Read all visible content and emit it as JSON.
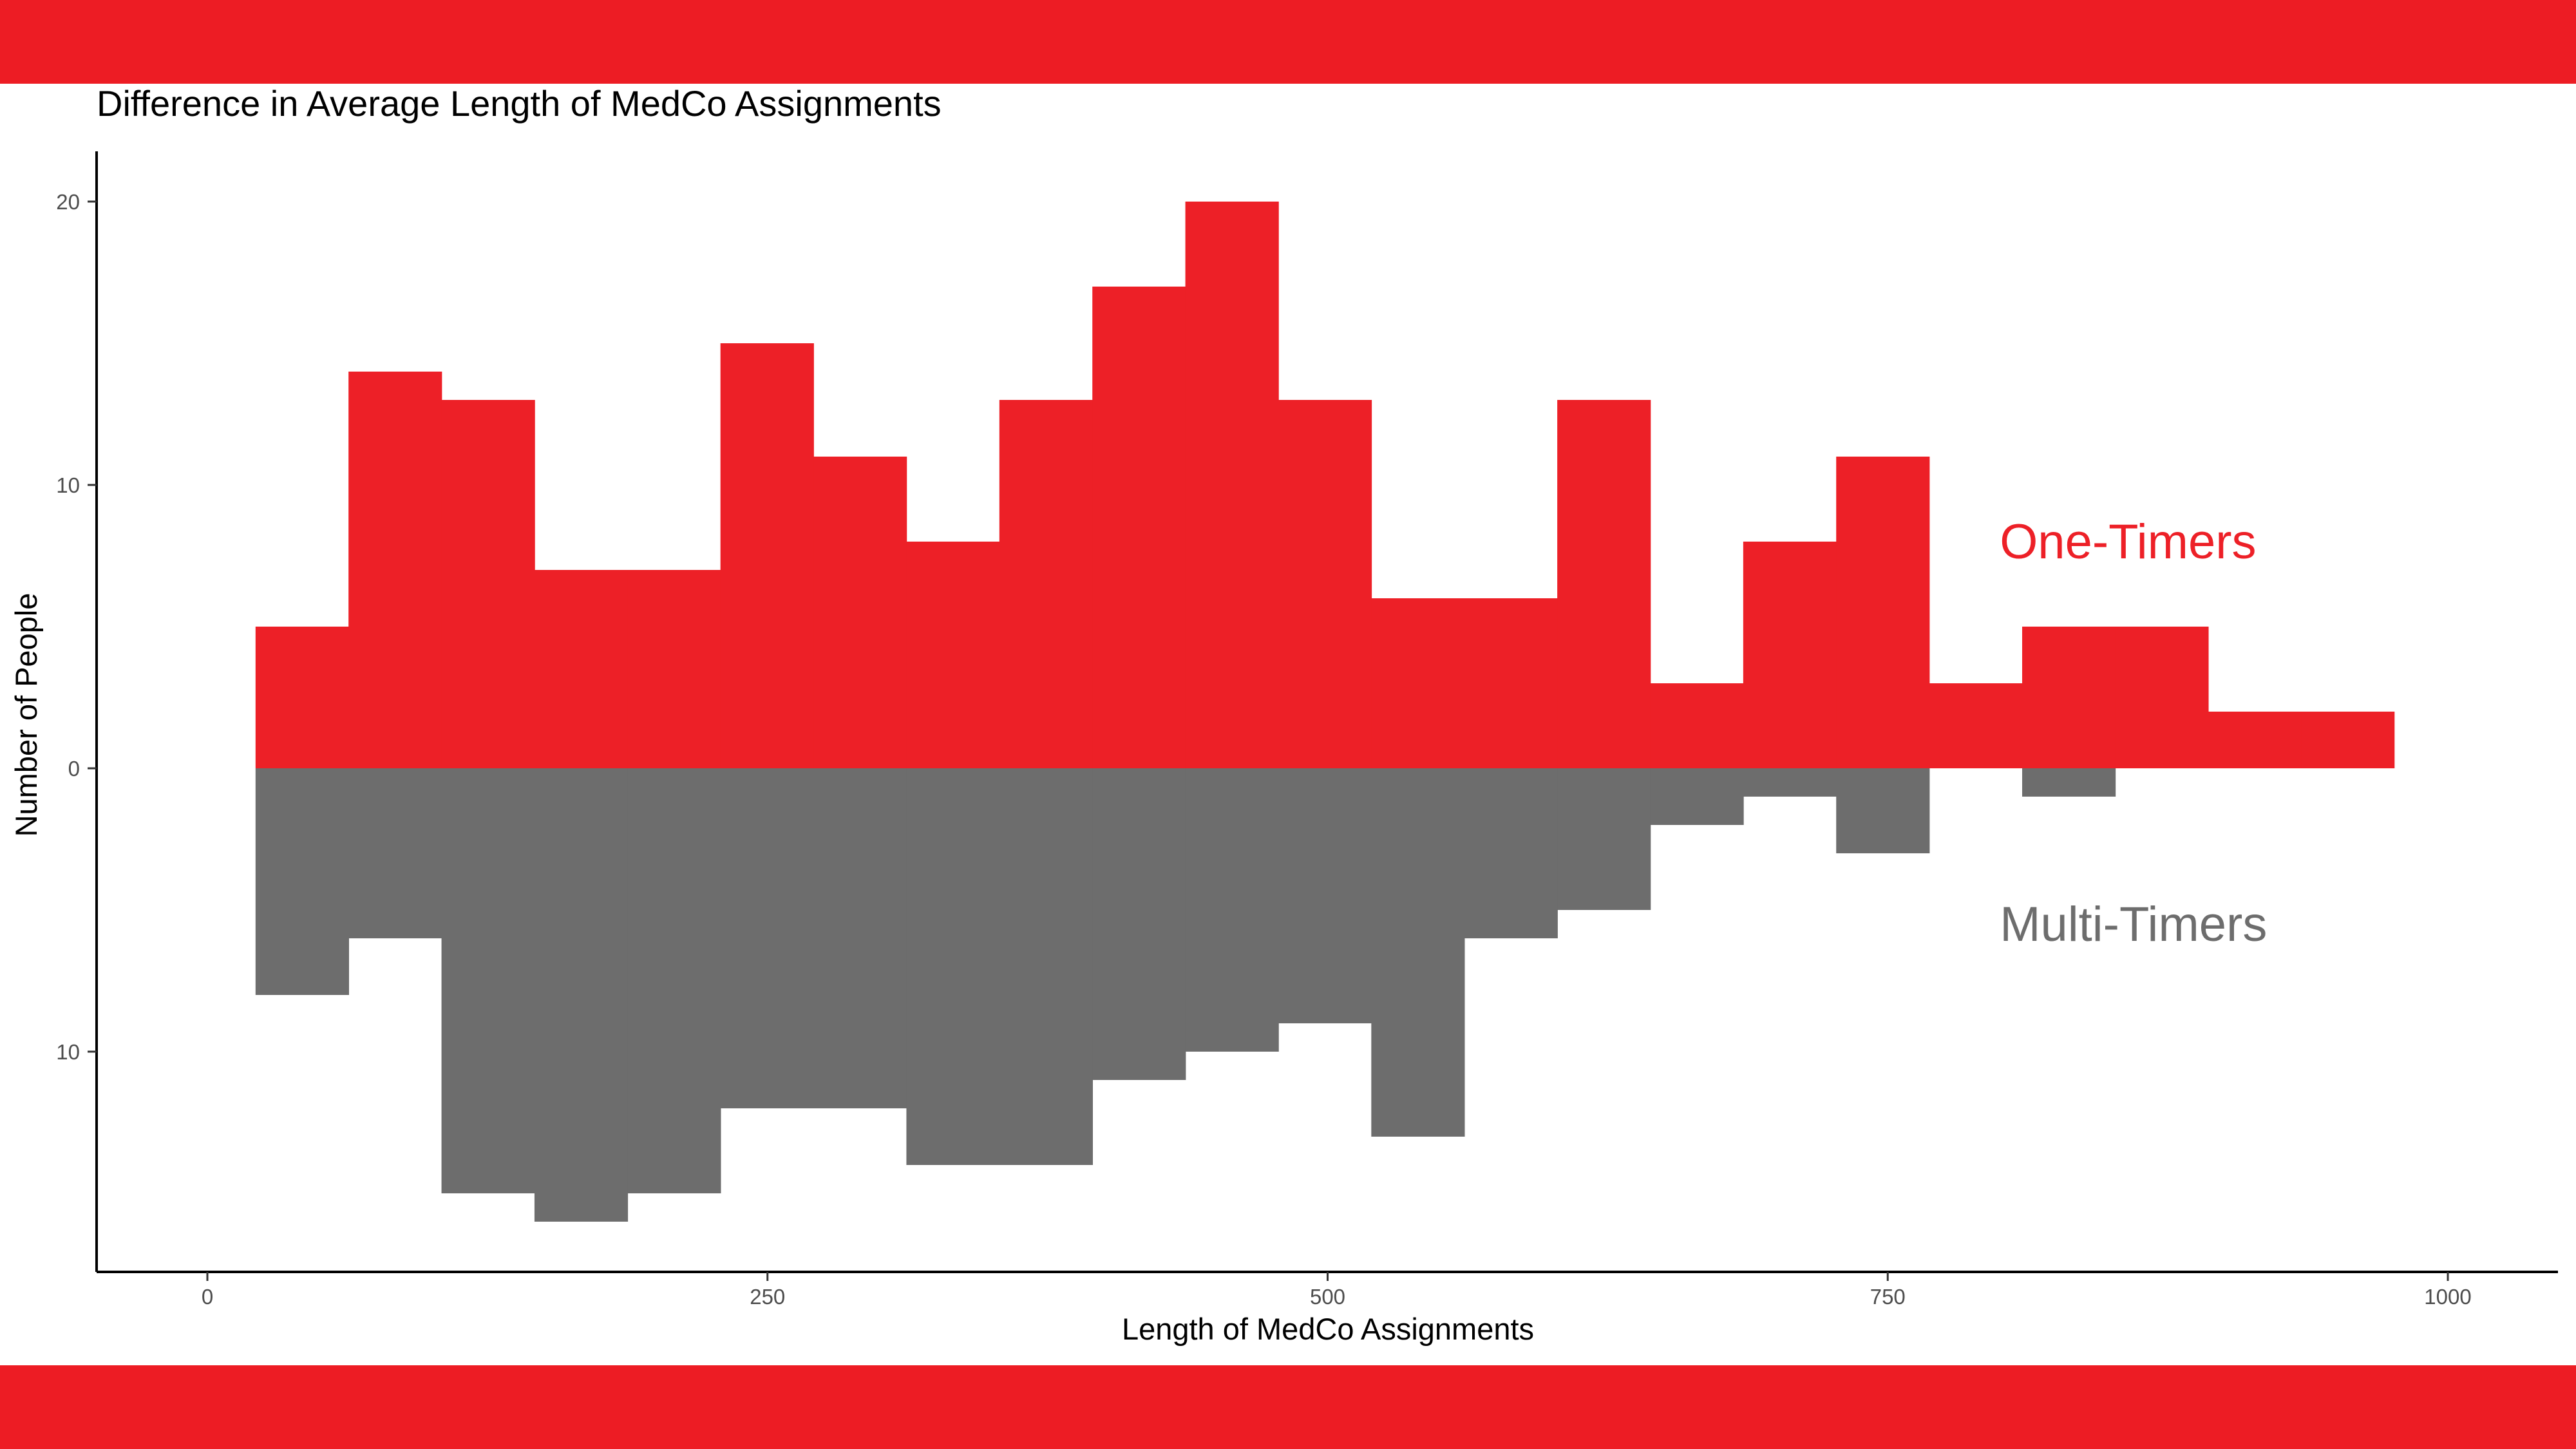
{
  "colors": {
    "band": "#ed1c24",
    "one_timers": "#ed2027",
    "multi_timers": "#6d6d6d",
    "axis": "#000000",
    "tick_text": "#4d4d4d"
  },
  "chart_data": {
    "type": "bar",
    "title": "Difference in Average Length of MedCo Assignments",
    "xlabel": "Length of MedCo Assignments",
    "ylabel": "Number of People",
    "xlim": [
      -50,
      1050
    ],
    "ylim": [
      -18,
      21
    ],
    "x_ticks": [
      {
        "value": 0,
        "label": "0"
      },
      {
        "value": 250,
        "label": "250"
      },
      {
        "value": 500,
        "label": "500"
      },
      {
        "value": 750,
        "label": "750"
      },
      {
        "value": 1000,
        "label": "1000"
      }
    ],
    "y_ticks": [
      {
        "value": 20,
        "label": "20"
      },
      {
        "value": 10,
        "label": "10"
      },
      {
        "value": 0,
        "label": "0"
      },
      {
        "value": -10,
        "label": "10"
      }
    ],
    "bin_start": 21.5,
    "bin_width": 41.5,
    "series": [
      {
        "name": "One-Timers",
        "direction": "up",
        "values": [
          5,
          14,
          13,
          7,
          7,
          15,
          11,
          8,
          13,
          17,
          20,
          13,
          6,
          6,
          13,
          3,
          8,
          11,
          3,
          5,
          5,
          2,
          2
        ]
      },
      {
        "name": "Multi-Timers",
        "direction": "down",
        "values": [
          8,
          6,
          15,
          16,
          15,
          12,
          12,
          14,
          14,
          11,
          10,
          9,
          13,
          6,
          5,
          2,
          1,
          3,
          0,
          1,
          0,
          0,
          0
        ]
      }
    ],
    "annotations": [
      {
        "series": "One-Timers",
        "text": "One-Timers",
        "x": 800,
        "y": 8
      },
      {
        "series": "Multi-Timers",
        "text": "Multi-Timers",
        "x": 800,
        "y": -5.5
      }
    ]
  }
}
